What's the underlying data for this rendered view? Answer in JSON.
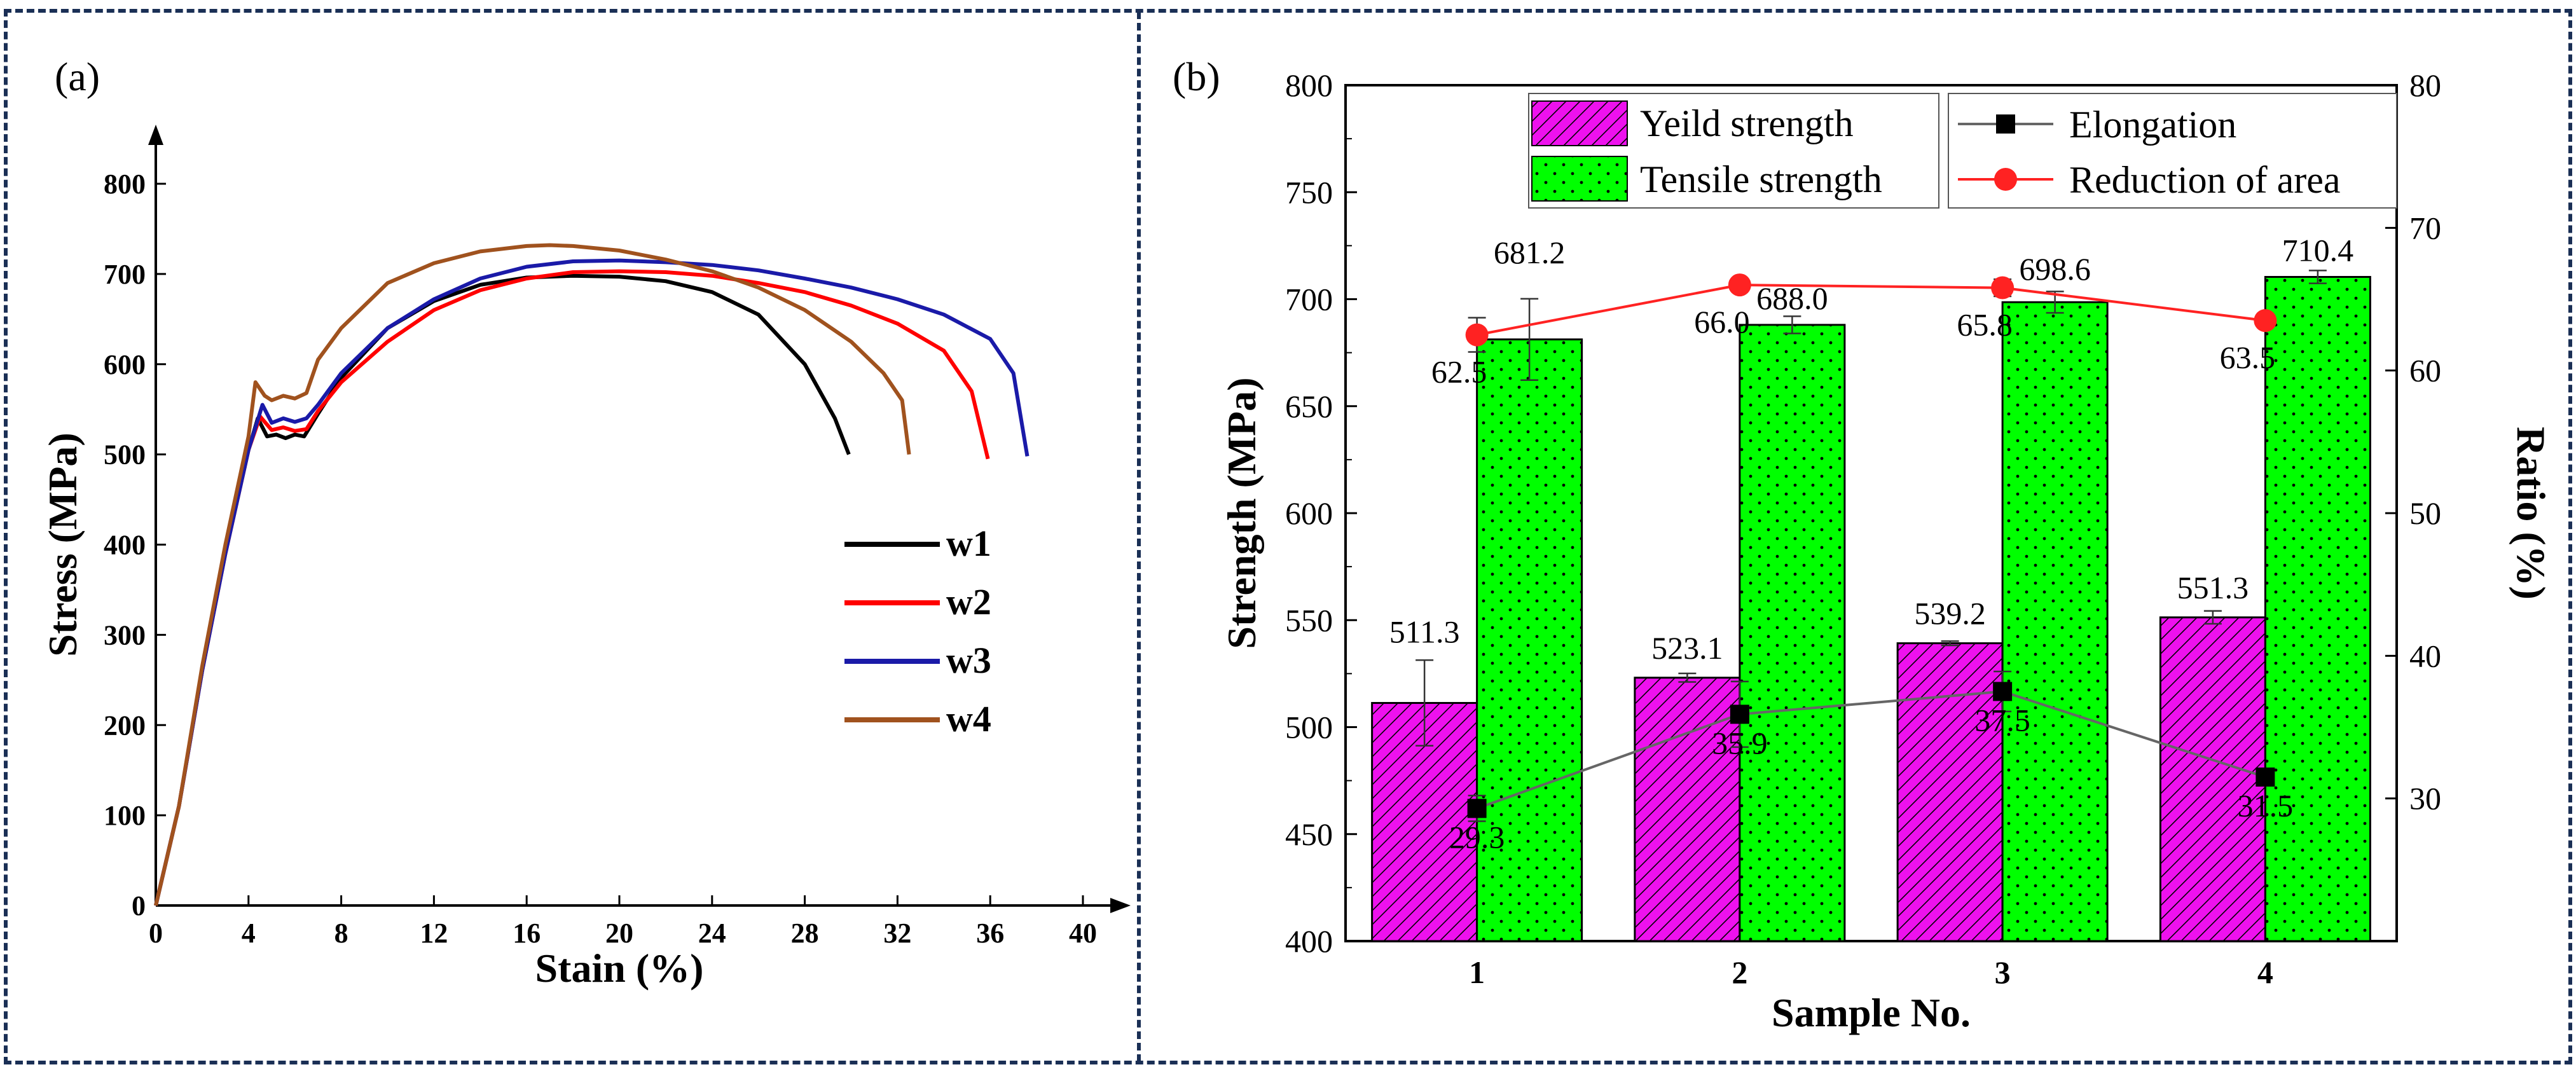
{
  "chart_data": [
    {
      "panel": "(a)",
      "type": "line",
      "xlabel": "Stain (%)",
      "ylabel": "Stress (MPa)",
      "xlim": [
        0,
        40
      ],
      "ylim": [
        0,
        800
      ],
      "xticks": [
        0,
        4,
        8,
        12,
        16,
        20,
        24,
        28,
        32,
        36,
        40
      ],
      "yticks": [
        0,
        100,
        200,
        300,
        400,
        500,
        600,
        700,
        800
      ],
      "legend_position": "center-right",
      "series": [
        {
          "name": "w1",
          "color": "#000000",
          "points": [
            [
              0,
              0
            ],
            [
              1,
              110
            ],
            [
              2,
              260
            ],
            [
              3,
              390
            ],
            [
              4,
              505
            ],
            [
              4.4,
              540
            ],
            [
              4.8,
              520
            ],
            [
              5.2,
              522
            ],
            [
              5.6,
              518
            ],
            [
              6,
              522
            ],
            [
              6.4,
              520
            ],
            [
              7,
              545
            ],
            [
              8,
              585
            ],
            [
              10,
              640
            ],
            [
              12,
              670
            ],
            [
              14,
              688
            ],
            [
              16,
              696
            ],
            [
              18,
              698
            ],
            [
              20,
              697
            ],
            [
              22,
              692
            ],
            [
              24,
              680
            ],
            [
              26,
              655
            ],
            [
              28,
              600
            ],
            [
              29.3,
              540
            ],
            [
              29.9,
              500
            ]
          ]
        },
        {
          "name": "w2",
          "color": "#ff0000",
          "points": [
            [
              0,
              0
            ],
            [
              1,
              110
            ],
            [
              2,
              260
            ],
            [
              3,
              390
            ],
            [
              4,
              505
            ],
            [
              4.5,
              542
            ],
            [
              5,
              527
            ],
            [
              5.5,
              530
            ],
            [
              6,
              526
            ],
            [
              6.5,
              528
            ],
            [
              7,
              548
            ],
            [
              8,
              580
            ],
            [
              10,
              625
            ],
            [
              12,
              660
            ],
            [
              14,
              682
            ],
            [
              16,
              695
            ],
            [
              18,
              702
            ],
            [
              20,
              703
            ],
            [
              22,
              702
            ],
            [
              24,
              698
            ],
            [
              26,
              690
            ],
            [
              28,
              680
            ],
            [
              30,
              665
            ],
            [
              32,
              645
            ],
            [
              34,
              615
            ],
            [
              35.2,
              570
            ],
            [
              35.9,
              495
            ]
          ]
        },
        {
          "name": "w3",
          "color": "#1a1aa8",
          "points": [
            [
              0,
              0
            ],
            [
              1,
              110
            ],
            [
              2,
              260
            ],
            [
              3,
              390
            ],
            [
              4,
              505
            ],
            [
              4.6,
              555
            ],
            [
              5,
              535
            ],
            [
              5.5,
              540
            ],
            [
              6,
              536
            ],
            [
              6.5,
              540
            ],
            [
              7,
              555
            ],
            [
              8,
              590
            ],
            [
              10,
              640
            ],
            [
              12,
              672
            ],
            [
              14,
              695
            ],
            [
              16,
              708
            ],
            [
              18,
              714
            ],
            [
              20,
              715
            ],
            [
              22,
              713
            ],
            [
              24,
              710
            ],
            [
              26,
              704
            ],
            [
              28,
              695
            ],
            [
              30,
              685
            ],
            [
              32,
              672
            ],
            [
              34,
              655
            ],
            [
              36,
              628
            ],
            [
              37,
              590
            ],
            [
              37.6,
              498
            ]
          ]
        },
        {
          "name": "w4",
          "color": "#a0521e",
          "points": [
            [
              0,
              0
            ],
            [
              1,
              110
            ],
            [
              2,
              265
            ],
            [
              3,
              400
            ],
            [
              4,
              520
            ],
            [
              4.3,
              580
            ],
            [
              4.7,
              565
            ],
            [
              5,
              560
            ],
            [
              5.5,
              565
            ],
            [
              6,
              562
            ],
            [
              6.5,
              568
            ],
            [
              7,
              605
            ],
            [
              8,
              640
            ],
            [
              10,
              690
            ],
            [
              12,
              712
            ],
            [
              14,
              725
            ],
            [
              16,
              731
            ],
            [
              17,
              732
            ],
            [
              18,
              731
            ],
            [
              20,
              726
            ],
            [
              22,
              716
            ],
            [
              24,
              703
            ],
            [
              26,
              685
            ],
            [
              28,
              660
            ],
            [
              30,
              625
            ],
            [
              31.4,
              590
            ],
            [
              32.2,
              560
            ],
            [
              32.5,
              500
            ]
          ]
        }
      ]
    },
    {
      "panel": "(b)",
      "type": "bar",
      "xlabel": "Sample No.",
      "ylabel": "Strength (MPa)",
      "y2label": "Ratio (%)",
      "categories": [
        "1",
        "2",
        "3",
        "4"
      ],
      "ylim": [
        400,
        800
      ],
      "y2lim": [
        20,
        80
      ],
      "yticks": [
        400,
        450,
        500,
        550,
        600,
        650,
        700,
        750,
        800
      ],
      "y2ticks": [
        30,
        40,
        50,
        60,
        70,
        80
      ],
      "legend_position": "top",
      "series": [
        {
          "name": "Yeild strength",
          "kind": "bar",
          "axis": "left",
          "color": "#ee11ee",
          "pattern": "hatch",
          "values": [
            511.3,
            523.1,
            539.2,
            551.3
          ],
          "labels": [
            "511.3",
            "523.1",
            "539.2",
            "551.3"
          ],
          "errors": [
            20,
            2,
            1,
            3
          ]
        },
        {
          "name": "Tensile strength",
          "kind": "bar",
          "axis": "left",
          "color": "#00ff00",
          "pattern": "dots",
          "values": [
            681.2,
            688.0,
            698.6,
            710.4
          ],
          "labels": [
            "681.2",
            "688.0",
            "698.6",
            "710.4"
          ],
          "errors": [
            19,
            4,
            5,
            3
          ]
        },
        {
          "name": "Elongation",
          "kind": "line",
          "axis": "right",
          "color": "#666666",
          "marker": "square",
          "values": [
            29.3,
            35.9,
            37.5,
            31.5
          ],
          "labels": [
            "29.3",
            "35.9",
            "37.5",
            "31.5"
          ],
          "errors": [
            0.9,
            2.3,
            1.4,
            0.5
          ]
        },
        {
          "name": "Reduction of area",
          "kind": "line",
          "axis": "right",
          "color": "#ff2222",
          "marker": "circle",
          "values": [
            62.5,
            66.0,
            65.8,
            63.5
          ],
          "labels": [
            "62.5",
            "66.0",
            "65.8",
            "63.5"
          ],
          "errors": [
            1.2,
            0.2,
            0.6,
            0.2
          ]
        }
      ]
    }
  ]
}
